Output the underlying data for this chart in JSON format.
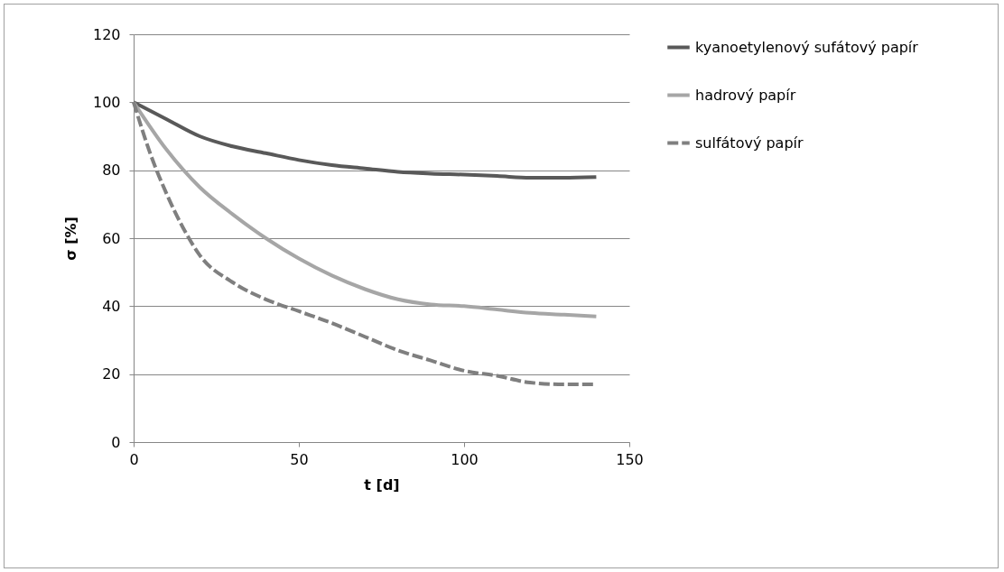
{
  "chart_data": {
    "type": "line",
    "xlabel": "t [d]",
    "ylabel": "σ [%]",
    "xlim": [
      0,
      150
    ],
    "xticks": [
      0,
      50,
      100,
      150
    ],
    "ylim": [
      0,
      120
    ],
    "yticks": [
      0,
      20,
      40,
      60,
      80,
      100,
      120
    ],
    "grid": "y",
    "legend": "right",
    "marker": "none",
    "series": [
      {
        "name": "kyanoetylenový sufátový papír",
        "color": "#595959",
        "line_style": "solid",
        "x": [
          0,
          10,
          20,
          30,
          40,
          50,
          60,
          70,
          80,
          90,
          100,
          110,
          120,
          130,
          140
        ],
        "values": [
          100,
          95,
          90,
          87,
          85,
          83,
          81.5,
          80.5,
          79.5,
          79,
          78.7,
          78.3,
          77.8,
          77.8,
          78
        ]
      },
      {
        "name": "hadrový papír",
        "color": "#a6a6a6",
        "line_style": "solid",
        "x": [
          0,
          10,
          20,
          30,
          40,
          50,
          60,
          70,
          80,
          90,
          100,
          110,
          120,
          130,
          140
        ],
        "values": [
          100,
          86,
          75,
          67,
          60,
          54,
          49,
          45,
          42,
          40.5,
          40,
          39,
          38,
          37.5,
          37
        ]
      },
      {
        "name": "sulfátový papír",
        "color": "#7f7f7f",
        "line_style": "dashed",
        "x": [
          0,
          5,
          10,
          15,
          20,
          30,
          40,
          50,
          60,
          70,
          80,
          90,
          100,
          110,
          120,
          130,
          140
        ],
        "values": [
          100,
          85,
          73,
          63,
          55,
          47,
          42,
          38.5,
          35,
          31,
          27,
          24,
          21,
          19.5,
          17.5,
          17,
          17
        ]
      }
    ]
  }
}
